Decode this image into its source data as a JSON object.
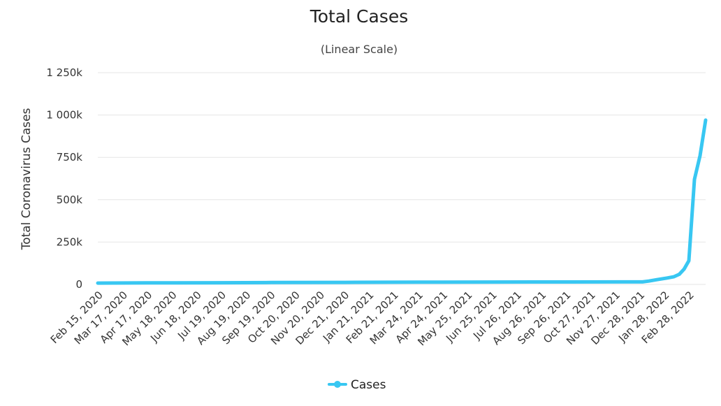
{
  "chart_data": {
    "type": "line",
    "title": "Total Cases",
    "subtitle": "(Linear Scale)",
    "xlabel": "",
    "ylabel": "Total Coronavirus Cases",
    "ylim": [
      0,
      1250000
    ],
    "yticks": [
      0,
      250000,
      500000,
      750000,
      1000000,
      1250000
    ],
    "ytick_labels": [
      "0",
      "250k",
      "500k",
      "750k",
      "1 000k",
      "1 250k"
    ],
    "grid": true,
    "legend_position": "bottom-center",
    "x_tick_labels": [
      "Feb 15, 2020",
      "Mar 17, 2020",
      "Apr 17, 2020",
      "May 18, 2020",
      "Jun 18, 2020",
      "Jul 19, 2020",
      "Aug 19, 2020",
      "Sep 19, 2020",
      "Oct 20, 2020",
      "Nov 20, 2020",
      "Dec 21, 2020",
      "Jan 21, 2021",
      "Feb 21, 2021",
      "Mar 24, 2021",
      "Apr 24, 2021",
      "May 25, 2021",
      "Jun 25, 2021",
      "Jul 26, 2021",
      "Aug 26, 2021",
      "Sep 26, 2021",
      "Oct 27, 2021",
      "Nov 27, 2021",
      "Dec 28, 2021",
      "Jan 28, 2022",
      "Feb 28, 2022"
    ],
    "series": [
      {
        "name": "Cases",
        "color": "#38c7f2",
        "points": [
          [
            "2020-02-15",
            8000
          ],
          [
            "2020-04-17",
            9000
          ],
          [
            "2020-07-19",
            10000
          ],
          [
            "2020-09-19",
            11000
          ],
          [
            "2020-12-21",
            12000
          ],
          [
            "2021-03-24",
            13000
          ],
          [
            "2021-06-25",
            14000
          ],
          [
            "2021-09-26",
            14500
          ],
          [
            "2021-12-28",
            15000
          ],
          [
            "2022-01-05",
            20000
          ],
          [
            "2022-01-15",
            28000
          ],
          [
            "2022-01-28",
            38000
          ],
          [
            "2022-02-05",
            45000
          ],
          [
            "2022-02-12",
            60000
          ],
          [
            "2022-02-18",
            90000
          ],
          [
            "2022-02-24",
            140000
          ],
          [
            "2022-03-03",
            620000
          ],
          [
            "2022-03-10",
            760000
          ],
          [
            "2022-03-17",
            970000
          ]
        ]
      }
    ]
  }
}
